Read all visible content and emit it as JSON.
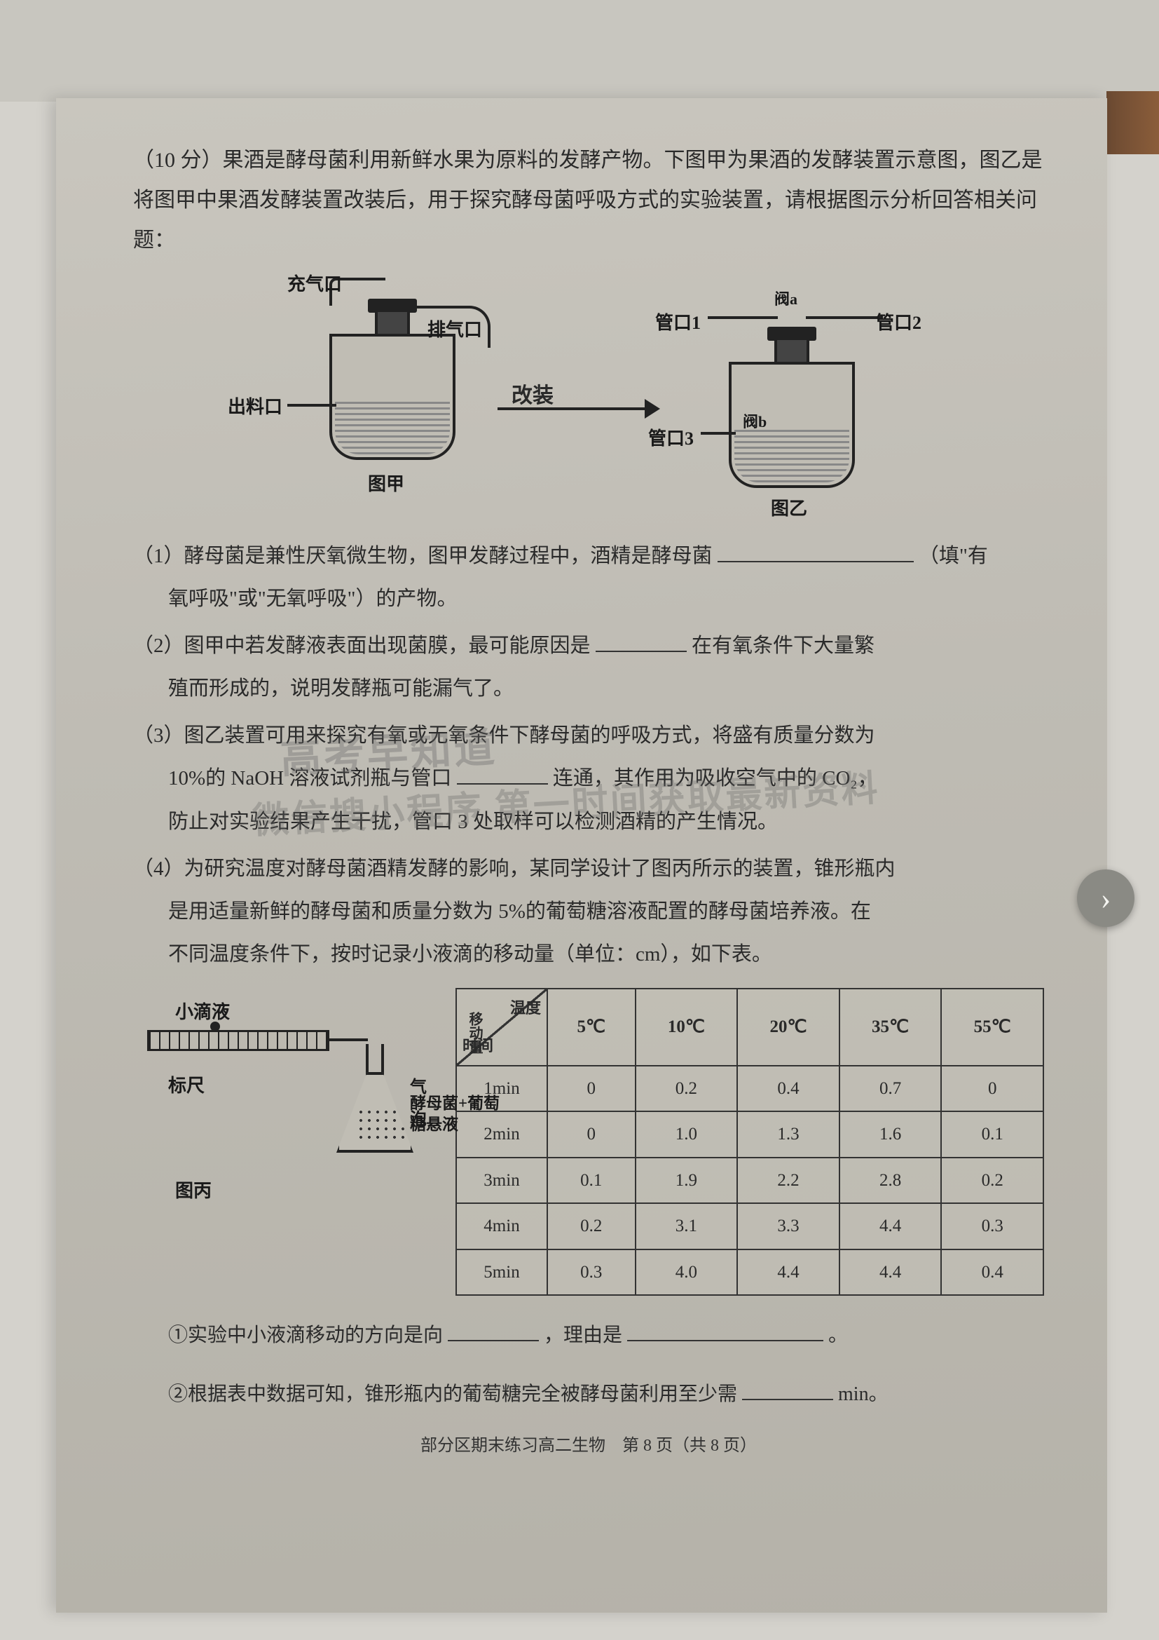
{
  "question_header": "（10 分）果酒是酵母菌利用新鲜水果为原料的发酵产物。下图甲为果酒的发酵装置示意图，图乙是将图甲中果酒发酵装置改装后，用于探究酵母菌呼吸方式的实验装置，请根据图示分析回答相关问题：",
  "diagram": {
    "jia": {
      "inlet": "充气口",
      "outlet": "排气口",
      "drain": "出料口",
      "caption": "图甲"
    },
    "modify_label": "改装",
    "yi": {
      "pipe1": "管口1",
      "pipe2": "管口2",
      "pipe3": "管口3",
      "valve_a": "阀a",
      "valve_b": "阀b",
      "caption": "图乙"
    }
  },
  "q1": {
    "prefix": "（1）酵母菌是兼性厌氧微生物，图甲发酵过程中，酒精是酵母菌",
    "suffix": "（填\"有",
    "line2": "氧呼吸\"或\"无氧呼吸\"）的产物。"
  },
  "q2": {
    "line1": "（2）图甲中若发酵液表面出现菌膜，最可能原因是",
    "line1_end": "在有氧条件下大量繁",
    "line2": "殖而形成的，说明发酵瓶可能漏气了。"
  },
  "q3": {
    "line1": "（3）图乙装置可用来探究有氧或无氧条件下酵母菌的呼吸方式，将盛有质量分数为",
    "line2_a": "10%的 NaOH 溶液试剂瓶与管口",
    "line2_b": "连通，其作用为吸收空气中的 CO₂，",
    "line3": "防止对实验结果产生干扰，管口 3 处取样可以检测酒精的产生情况。"
  },
  "q4": {
    "line1": "（4）为研究温度对酵母菌酒精发酵的影响，某同学设计了图丙所示的装置，锥形瓶内",
    "line2": "是用适量新鲜的酵母菌和质量分数为 5%的葡萄糖溶液配置的酵母菌培养液。在",
    "line3": "不同温度条件下，按时记录小液滴的移动量（单位：cm），如下表。"
  },
  "bing": {
    "drop": "小滴液",
    "ruler": "标尺",
    "bubble": "气泡",
    "mix": "酵母菌+葡萄糖悬液",
    "caption": "图丙"
  },
  "table": {
    "diag_top": "温度",
    "diag_mid": "移动量",
    "diag_bot": "时间",
    "temps": [
      "5℃",
      "10℃",
      "20℃",
      "35℃",
      "55℃"
    ],
    "rows": [
      {
        "t": "1min",
        "v": [
          "0",
          "0.2",
          "0.4",
          "0.7",
          "0"
        ]
      },
      {
        "t": "2min",
        "v": [
          "0",
          "1.0",
          "1.3",
          "1.6",
          "0.1"
        ]
      },
      {
        "t": "3min",
        "v": [
          "0.1",
          "1.9",
          "2.2",
          "2.8",
          "0.2"
        ]
      },
      {
        "t": "4min",
        "v": [
          "0.2",
          "3.1",
          "3.3",
          "4.4",
          "0.3"
        ]
      },
      {
        "t": "5min",
        "v": [
          "0.3",
          "4.0",
          "4.4",
          "4.4",
          "0.4"
        ]
      }
    ]
  },
  "sub1": {
    "a": "①实验中小液滴移动的方向是向",
    "b": "，理由是",
    "c": "。"
  },
  "sub2": {
    "a": "②根据表中数据可知，锥形瓶内的葡萄糖完全被酵母菌利用至少需",
    "b": "min。"
  },
  "footer": "部分区期末练习高二生物　第 8 页（共 8 页）",
  "watermark1": "高考早知道",
  "watermark2": "微信搜小程序 第一时间获取最新资料",
  "nav_next": "›",
  "colors": {
    "paper_bg": "#bfbcb4",
    "text": "#2a2a2a",
    "border": "#333333",
    "watermark": "rgba(100,100,100,0.35)"
  }
}
